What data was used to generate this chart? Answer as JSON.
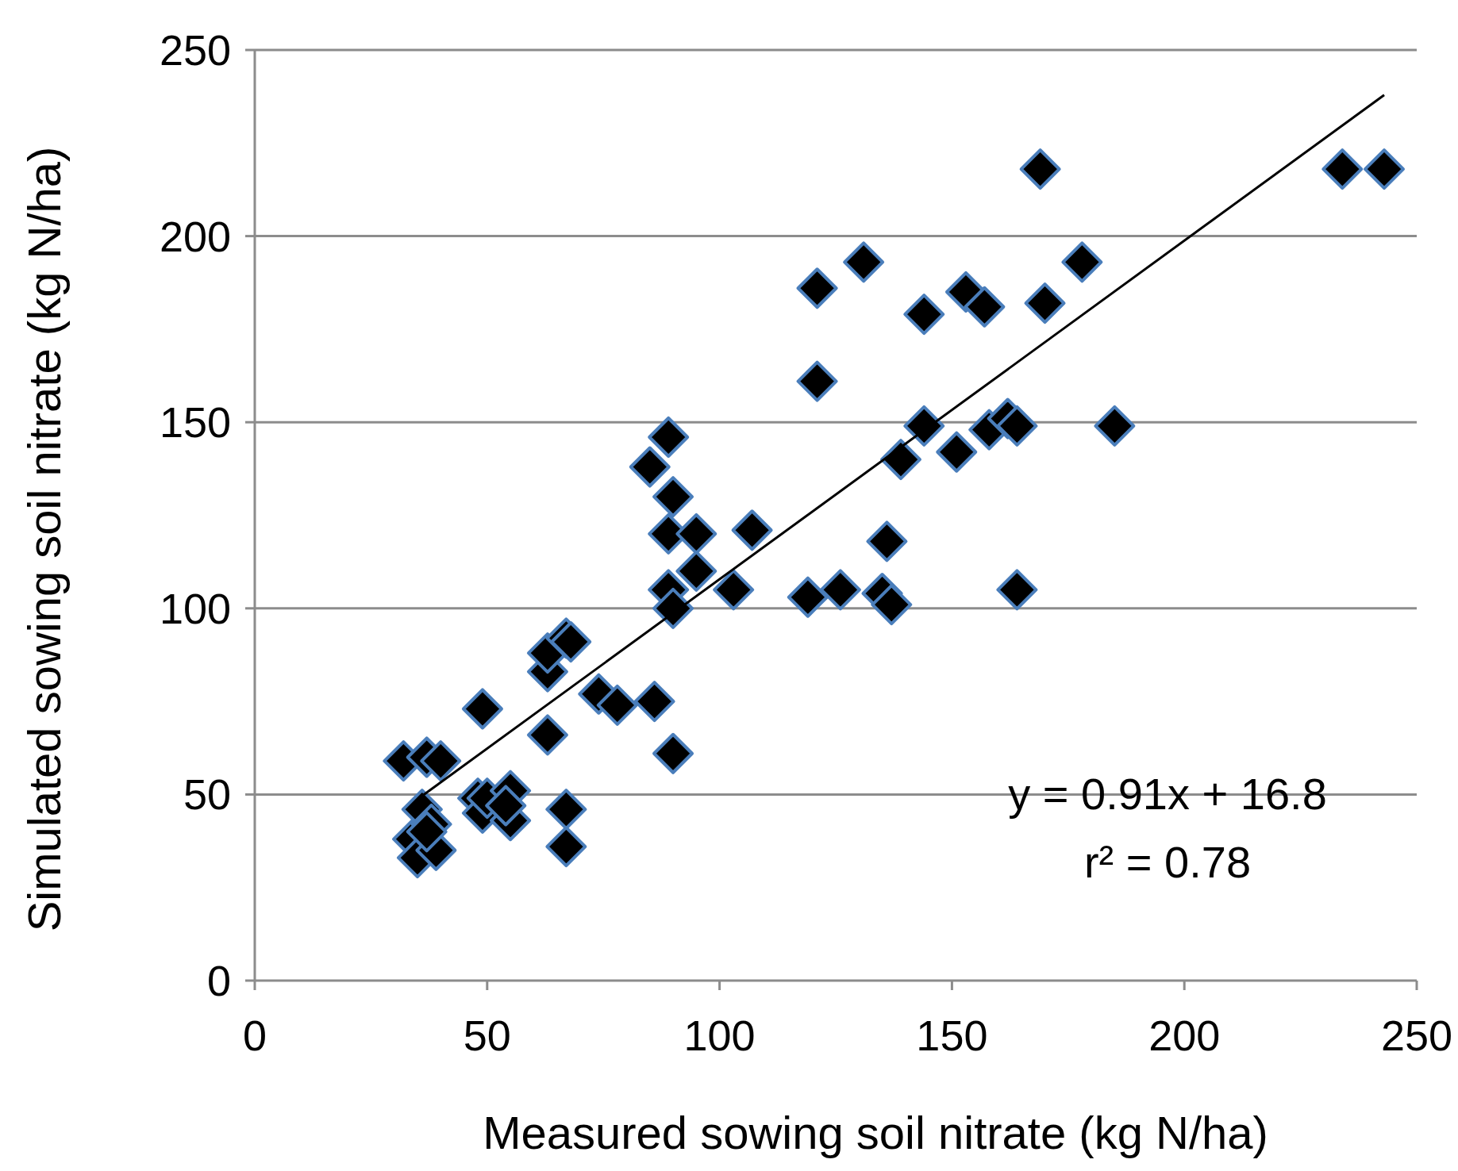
{
  "chart_data": {
    "type": "scatter",
    "xlabel": "Measured sowing soil nitrate (kg N/ha)",
    "ylabel": "Simulated sowing soil nitrate (kg N/ha)",
    "xlim": [
      0,
      250
    ],
    "ylim": [
      0,
      250
    ],
    "xticks": [
      0,
      50,
      100,
      150,
      200,
      250
    ],
    "yticks": [
      0,
      50,
      100,
      150,
      200,
      250
    ],
    "grid": "y",
    "series": [
      {
        "marker": "diamond",
        "color": "#000000",
        "x": [
          32,
          37,
          40,
          34,
          35,
          36,
          38,
          39,
          37,
          49,
          48,
          49,
          50,
          55,
          55,
          54,
          63,
          63,
          67,
          68,
          63,
          67,
          67,
          74,
          78,
          86,
          90,
          85,
          89,
          90,
          89,
          95,
          95,
          89,
          90,
          107,
          103,
          119,
          126,
          135,
          136,
          137,
          121,
          121,
          131,
          144,
          144,
          139,
          151,
          153,
          157,
          158,
          162,
          164,
          164,
          169,
          170,
          178,
          185,
          234,
          243
        ],
        "values": [
          59,
          60,
          59,
          38,
          33,
          46,
          42,
          35,
          40,
          73,
          49,
          45,
          49,
          51,
          43,
          47,
          83,
          88,
          92,
          91,
          66,
          46,
          36,
          77,
          74,
          75,
          61,
          138,
          146,
          130,
          120,
          120,
          110,
          105,
          100,
          121,
          105,
          103,
          105,
          104,
          118,
          101,
          186,
          161,
          193,
          179,
          149,
          140,
          142,
          185,
          181,
          148,
          151,
          149,
          105,
          218,
          182,
          193,
          149,
          218,
          218
        ]
      },
      {
        "type": "line",
        "marker": "none",
        "line_style": "solid",
        "color": "#000000",
        "x": [
          35,
          243
        ],
        "values": [
          48.7,
          237.9
        ]
      }
    ],
    "annotations": [
      "y = 0.91x + 16.8",
      "r² = 0.78"
    ]
  }
}
